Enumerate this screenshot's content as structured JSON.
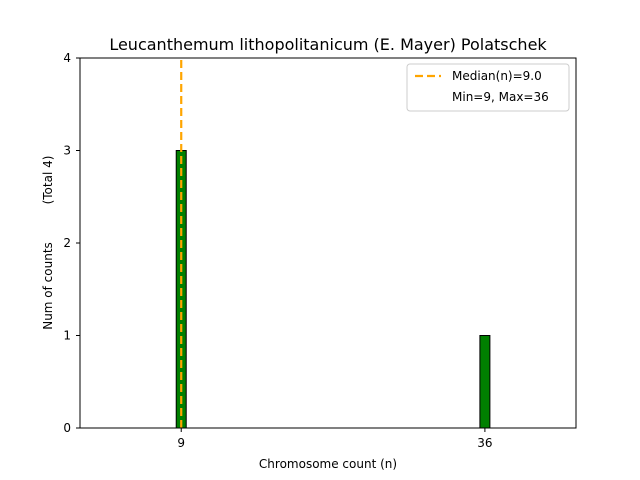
{
  "chart_data": {
    "type": "bar",
    "title": "Leucanthemum lithopolitanicum (E. Mayer) Polatschek",
    "xlabel": "Chromosome count (n)",
    "ylabel": "Num of counts",
    "ylabel_note": "(Total 4)",
    "categories": [
      "9",
      "36"
    ],
    "x": [
      9,
      36
    ],
    "values": [
      3,
      1
    ],
    "bar_color": "#008000",
    "xlim": [
      0,
      44.1
    ],
    "ylim": [
      0,
      4
    ],
    "yticks": [
      0,
      1,
      2,
      3,
      4
    ],
    "grid": false,
    "legend_position": "top-right",
    "median": {
      "value": 9.0,
      "color": "#ffa500",
      "label": "Median(n)=9.0"
    },
    "range_note": "Min=9, Max=36"
  }
}
